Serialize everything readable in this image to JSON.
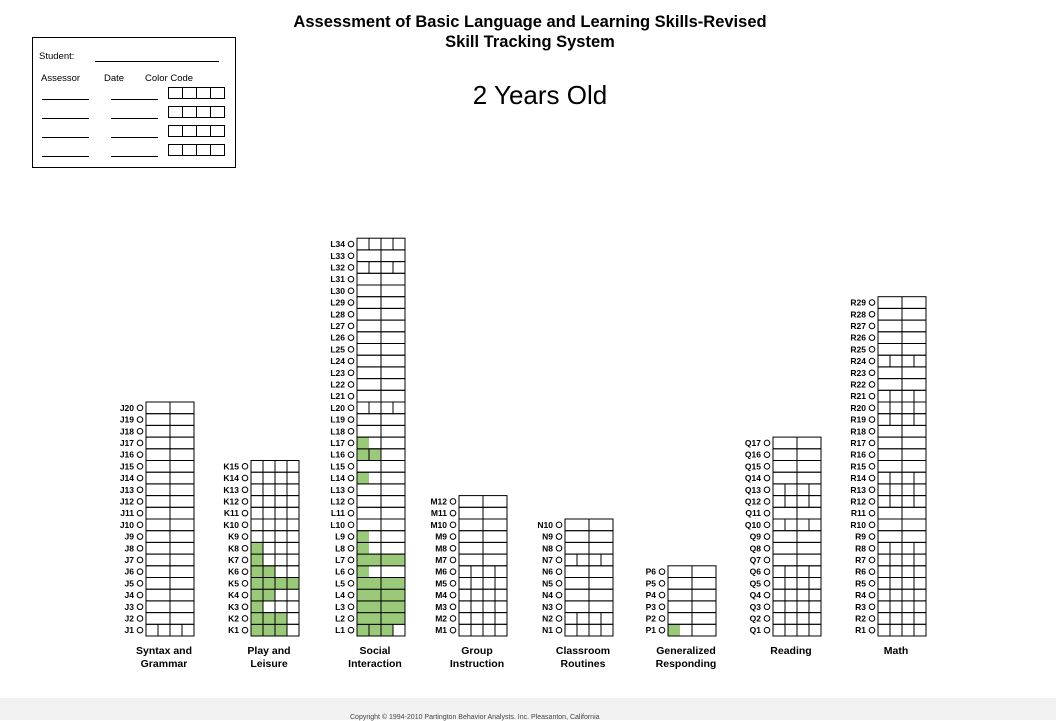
{
  "title_line1": "Assessment of Basic Language and Learning Skills-Revised",
  "title_line2": "Skill Tracking System",
  "age_label": "2 Years Old",
  "info": {
    "student_label": "Student:",
    "assessor_label": "Assessor",
    "date_label": "Date",
    "color_code_label": "Color Code"
  },
  "colors": {
    "fill": "#9bc97a",
    "line": "#000000"
  },
  "categories": [
    {
      "name": [
        "Syntax and",
        "Grammar"
      ],
      "prefix": "J",
      "count": 20,
      "dividers": {
        "1": [
          1,
          2,
          3
        ]
      },
      "filled": {}
    },
    {
      "name": [
        "Play and",
        "Leisure"
      ],
      "prefix": "K",
      "count": 15,
      "dividers": {
        "1": [
          1,
          2,
          3
        ],
        "2": [
          1,
          2,
          3
        ],
        "3": [
          1,
          2,
          3
        ],
        "4": [
          1,
          2,
          3
        ],
        "5": [
          1,
          2,
          3
        ],
        "6": [
          1,
          2,
          3
        ],
        "7": [
          1,
          2,
          3
        ],
        "8": [
          1,
          2,
          3
        ],
        "9": [
          1,
          2,
          3
        ],
        "10": [
          1,
          2,
          3
        ],
        "11": [
          1,
          2,
          3
        ],
        "12": [
          1,
          2,
          3
        ],
        "13": [
          1,
          2,
          3
        ],
        "14": [
          1,
          2,
          3
        ],
        "15": [
          1,
          2,
          3
        ]
      },
      "filled": {
        "1": [
          0,
          1,
          2
        ],
        "2": [
          0,
          1,
          2
        ],
        "3": [
          0
        ],
        "4": [
          0,
          1
        ],
        "5": [
          0,
          1,
          2,
          3
        ],
        "6": [
          0,
          1
        ],
        "7": [
          0
        ],
        "8": [
          0
        ]
      }
    },
    {
      "name": [
        "Social",
        "Interaction"
      ],
      "prefix": "L",
      "count": 34,
      "dividers": {
        "1": [
          1,
          2,
          3
        ],
        "16": [
          1,
          2
        ],
        "20": [
          1,
          2,
          3
        ],
        "32": [
          1,
          2,
          3
        ],
        "34": [
          1,
          2,
          3
        ]
      },
      "filled": {
        "1": [
          0,
          1,
          2
        ],
        "2": [
          0,
          1,
          2,
          3
        ],
        "3": [
          0,
          1,
          2,
          3
        ],
        "4": [
          0,
          1,
          2,
          3
        ],
        "5": [
          0,
          1,
          2,
          3
        ],
        "6": [
          0
        ],
        "7": [
          0,
          1,
          2,
          3
        ],
        "8": [
          0
        ],
        "9": [
          0
        ],
        "14": [
          0
        ],
        "16": [
          0,
          1
        ],
        "17": [
          0
        ]
      }
    },
    {
      "name": [
        "Group",
        "Instruction"
      ],
      "prefix": "M",
      "count": 12,
      "dividers": {
        "1": [
          1,
          2,
          3
        ],
        "2": [
          1,
          2,
          3
        ],
        "3": [
          1,
          2,
          3
        ],
        "4": [
          1,
          2,
          3
        ],
        "5": [
          1,
          2,
          3
        ],
        "6": [
          1,
          2,
          3
        ]
      },
      "filled": {}
    },
    {
      "name": [
        "Classroom",
        "Routines"
      ],
      "prefix": "N",
      "count": 10,
      "dividers": {
        "1": [
          1,
          2,
          3
        ],
        "2": [
          1,
          2,
          3
        ],
        "7": [
          1,
          2,
          3
        ]
      },
      "filled": {}
    },
    {
      "name": [
        "Generalized",
        "Responding"
      ],
      "prefix": "P",
      "count": 6,
      "dividers": {},
      "filled": {
        "1": [
          0
        ]
      }
    },
    {
      "name": [
        "Reading"
      ],
      "prefix": "Q",
      "count": 17,
      "dividers": {
        "1": [
          1,
          2,
          3
        ],
        "2": [
          1,
          2,
          3
        ],
        "3": [
          1,
          2,
          3
        ],
        "4": [
          1,
          2,
          3
        ],
        "5": [
          1,
          2,
          3
        ],
        "6": [
          1,
          2,
          3
        ],
        "10": [
          1,
          2,
          3
        ],
        "12": [
          1,
          2,
          3
        ],
        "13": [
          1,
          2,
          3
        ]
      },
      "filled": {}
    },
    {
      "name": [
        "Math"
      ],
      "prefix": "R",
      "count": 29,
      "dividers": {
        "1": [
          1,
          2,
          3
        ],
        "2": [
          1,
          2,
          3
        ],
        "3": [
          1,
          2,
          3
        ],
        "4": [
          1,
          2,
          3
        ],
        "5": [
          1,
          2,
          3
        ],
        "6": [
          1,
          2,
          3
        ],
        "7": [
          1,
          2,
          3
        ],
        "8": [
          1,
          2,
          3
        ],
        "12": [
          1,
          2,
          3
        ],
        "13": [
          1,
          2,
          3
        ],
        "14": [
          1,
          2,
          3
        ],
        "19": [
          1,
          2,
          3
        ],
        "20": [
          1,
          2,
          3
        ],
        "21": [
          1,
          2,
          3
        ],
        "24": [
          1,
          2,
          3
        ]
      },
      "filled": {}
    }
  ],
  "footer_text": "Copyright © 1994-2010 Partington Behavior Analysts. Inc. Pleasanton, California"
}
